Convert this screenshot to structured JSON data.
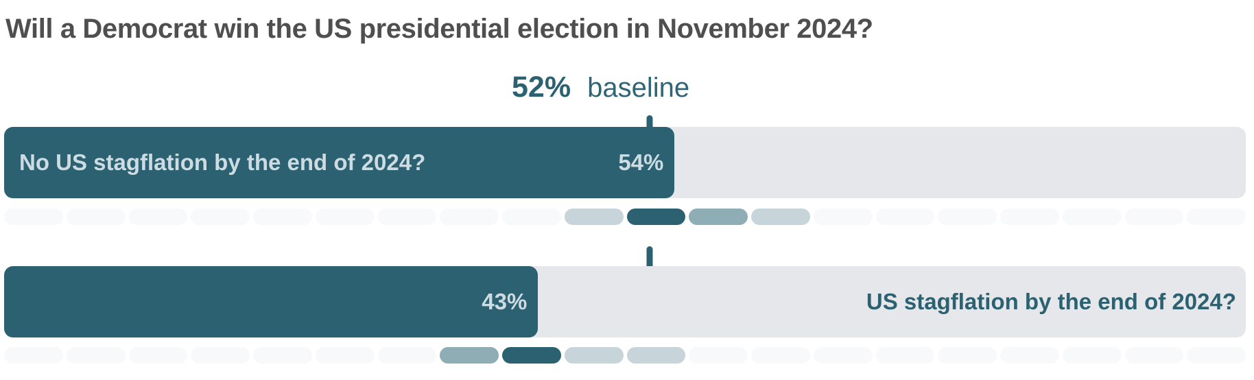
{
  "chart_data": {
    "type": "bar",
    "title": "Will a Democrat win the US presidential election in November 2024?",
    "baseline": {
      "value": 52,
      "value_label": "52%",
      "word": "baseline"
    },
    "xlim": [
      0,
      100
    ],
    "bars": [
      {
        "label": "No US stagflation by the end of 2024?",
        "probability": 54,
        "value_label": "54%",
        "label_position": "inside-left"
      },
      {
        "label": "US stagflation by the end of 2024?",
        "probability": 43,
        "value_label": "43%",
        "label_position": "outside-right"
      }
    ],
    "pill_colors": {
      "none": "#f7f9fb",
      "light": "#c7d4d9",
      "medium": "#8fadb4",
      "dark": "#2b6170"
    },
    "strips": [
      {
        "cells": [
          "none",
          "none",
          "none",
          "none",
          "none",
          "none",
          "none",
          "none",
          "none",
          "light",
          "dark",
          "medium",
          "light",
          "none",
          "none",
          "none",
          "none",
          "none",
          "none",
          "none"
        ]
      },
      {
        "cells": [
          "none",
          "none",
          "none",
          "none",
          "none",
          "none",
          "none",
          "medium",
          "dark",
          "light",
          "light",
          "none",
          "none",
          "none",
          "none",
          "none",
          "none",
          "none",
          "none",
          "none"
        ]
      }
    ]
  },
  "colors": {
    "accent_teal": "#2b6170",
    "track_gray": "#e5e7ea",
    "bar_text_light": "#cddce2",
    "title_text": "#4f4f4f"
  }
}
